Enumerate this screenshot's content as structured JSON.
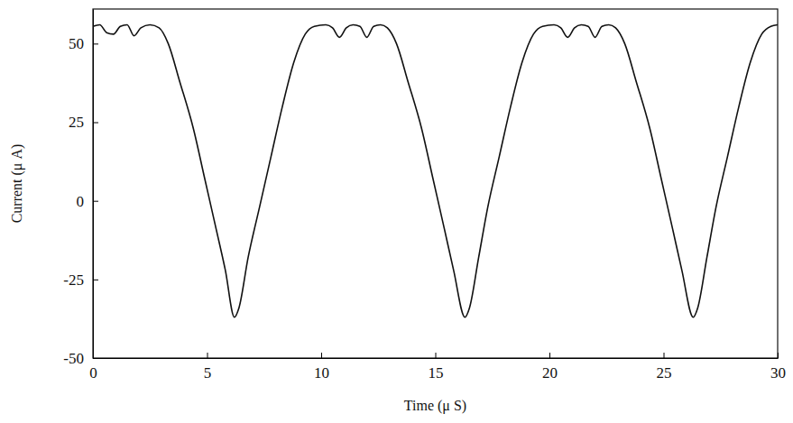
{
  "chart_data": {
    "type": "line",
    "x_label": "Time (μ S)",
    "y_label": "Current (μ A)",
    "x": [
      0,
      0.3,
      0.6,
      0.9,
      1.2,
      1.5,
      1.8,
      2.1,
      2.5,
      2.9,
      3.3,
      3.8,
      4.4,
      4.9,
      5.4,
      5.8,
      6.2,
      6.4,
      6.8,
      7.3,
      7.8,
      8.3,
      8.8,
      9.3,
      9.7,
      10.2,
      10.5,
      10.8,
      11.1,
      11.4,
      11.7,
      12.0,
      12.3,
      12.6,
      12.9,
      13.3,
      13.8,
      14.4,
      14.9,
      15.4,
      15.8,
      16.3,
      16.5,
      16.9,
      17.3,
      17.8,
      18.3,
      18.8,
      19.3,
      19.7,
      20.2,
      20.5,
      20.8,
      21.1,
      21.4,
      21.7,
      22.0,
      22.3,
      22.6,
      22.9,
      23.3,
      23.8,
      24.4,
      24.9,
      25.4,
      25.8,
      26.3,
      26.5,
      26.9,
      27.3,
      27.8,
      28.3,
      28.8,
      29.3,
      29.7,
      30
    ],
    "values": [
      55.5,
      56,
      53.5,
      53,
      55.5,
      56,
      52.5,
      55,
      56,
      55,
      50,
      38,
      23,
      7,
      -9,
      -22,
      -37,
      -34,
      -18,
      -2,
      14,
      30,
      44,
      53,
      55.5,
      56,
      55,
      52,
      55,
      56,
      55.5,
      52,
      55.5,
      56,
      55,
      50,
      38,
      23,
      7,
      -9,
      -22,
      -37,
      -34,
      -18,
      -2,
      14,
      30,
      44,
      53,
      55.5,
      56,
      55,
      52,
      55,
      56,
      55.5,
      52,
      55.5,
      56,
      55,
      50,
      38,
      23,
      7,
      -9,
      -22,
      -37,
      -34,
      -18,
      -2,
      14,
      30,
      44,
      53,
      55.5,
      56
    ],
    "color": "#111111",
    "xlim": [
      0,
      30
    ],
    "xticks": [
      0,
      5,
      10,
      15,
      20,
      25,
      30
    ],
    "ylim": [
      -50,
      61
    ],
    "yticks": [
      -50,
      -25,
      0,
      25,
      50
    ],
    "grid": false
  }
}
